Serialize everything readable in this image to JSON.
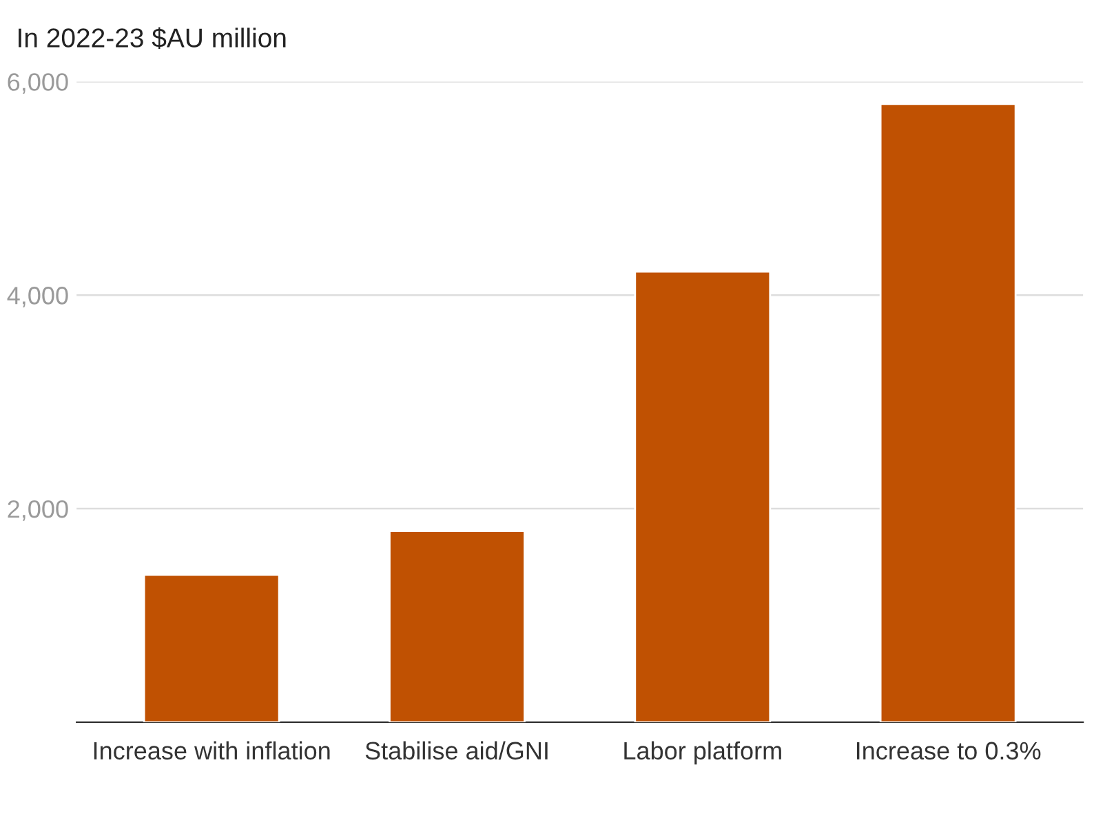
{
  "chart_data": {
    "type": "bar",
    "title": "In 2022-23 $AU million",
    "categories": [
      "Increase with inflation",
      "Stabilise aid/GNI",
      "Labor platform",
      "Increase to 0.3%"
    ],
    "values": [
      1380,
      1790,
      4220,
      5790
    ],
    "color": "#c05102",
    "ylim": [
      0,
      6000
    ],
    "yticks": [
      {
        "value": 2000,
        "label": "2,000"
      },
      {
        "value": 4000,
        "label": "4,000"
      },
      {
        "value": 6000,
        "label": "6,000"
      }
    ],
    "grid": "y"
  }
}
